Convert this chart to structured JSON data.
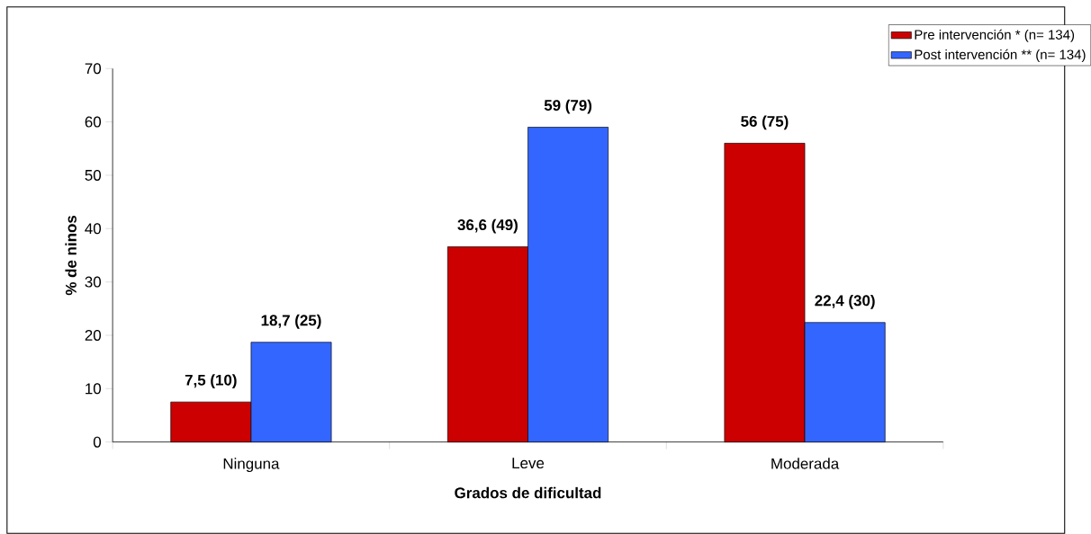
{
  "chart_data": {
    "type": "bar",
    "xlabel": "Grados de dificultad",
    "ylabel": "% de ninos",
    "categories": [
      "Ninguna",
      "Leve",
      "Moderada"
    ],
    "series": [
      {
        "name": "Pre intervención * (n= 134)",
        "color": "#cc0000",
        "values": [
          7.5,
          36.6,
          56
        ],
        "value_labels": [
          "7,5 (10)",
          "36,6 (49)",
          "56 (75)"
        ]
      },
      {
        "name": "Post intervención ** (n= 134)",
        "color": "#3366ff",
        "values": [
          18.7,
          59,
          22.4
        ],
        "value_labels": [
          "18,7 (25)",
          "59 (79)",
          "22,4 (30)"
        ]
      }
    ],
    "ylim": [
      0,
      70
    ],
    "yticks": [
      0,
      10,
      20,
      30,
      40,
      50,
      60,
      70
    ],
    "grid": false,
    "legend": "top right"
  }
}
